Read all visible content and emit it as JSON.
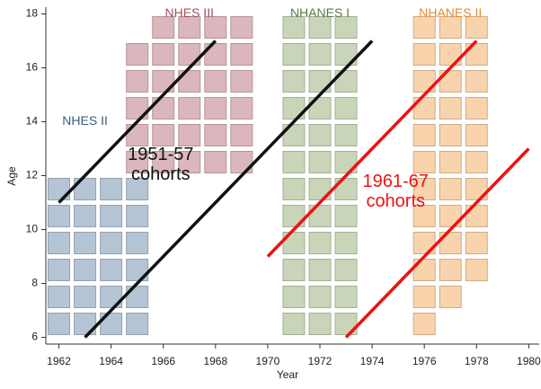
{
  "chart_data": {
    "type": "lexis",
    "x_label": "Year",
    "y_label": "Age",
    "xlim": [
      1961.5,
      1980.4
    ],
    "ylim": [
      5.75,
      18.25
    ],
    "xticks": [
      1962,
      1964,
      1966,
      1968,
      1970,
      1972,
      1974,
      1976,
      1978,
      1980
    ],
    "yticks": [
      6,
      8,
      10,
      12,
      14,
      16,
      18
    ],
    "surveys": [
      {
        "name": "NHES II",
        "color": "#b5c4d4",
        "label_color": "#3f5b7a",
        "label_at": [
          1963,
          14
        ],
        "columns": [
          {
            "year": 1962,
            "ages": [
              6,
              11
            ]
          },
          {
            "year": 1963,
            "ages": [
              6,
              11
            ]
          },
          {
            "year": 1964,
            "ages": [
              6,
              11
            ]
          },
          {
            "year": 1965,
            "ages": [
              6,
              11
            ]
          }
        ]
      },
      {
        "name": "NHES III",
        "color": "#dbb6bc",
        "label_color": "#a0505a",
        "label_at": [
          1967,
          18
        ],
        "columns": [
          {
            "year": 1965,
            "ages": [
              12,
              16
            ]
          },
          {
            "year": 1966,
            "ages": [
              12,
              17
            ]
          },
          {
            "year": 1967,
            "ages": [
              12,
              17
            ]
          },
          {
            "year": 1968,
            "ages": [
              12,
              17
            ]
          },
          {
            "year": 1969,
            "ages": [
              12,
              17
            ]
          }
        ]
      },
      {
        "name": "NHANES I",
        "color": "#c8d5b8",
        "label_color": "#5b7a3a",
        "label_at": [
          1972,
          18
        ],
        "columns": [
          {
            "year": 1971,
            "ages": [
              6,
              17
            ]
          },
          {
            "year": 1972,
            "ages": [
              6,
              17
            ]
          },
          {
            "year": 1973,
            "ages": [
              6,
              17
            ]
          }
        ]
      },
      {
        "name": "NHANES II",
        "color": "#f8d3ab",
        "label_color": "#e8892a",
        "label_at": [
          1977,
          18
        ],
        "columns": [
          {
            "year": 1976,
            "ages": [
              6,
              17
            ]
          },
          {
            "year": 1977,
            "ages": [
              7,
              17
            ]
          },
          {
            "year": 1978,
            "ages": [
              8,
              17
            ]
          }
        ]
      }
    ],
    "lines": [
      {
        "color": "#111111",
        "x": [
          1962,
          1968
        ],
        "y": [
          11,
          17
        ]
      },
      {
        "color": "#111111",
        "x": [
          1963,
          1974
        ],
        "y": [
          6,
          17
        ]
      },
      {
        "color": "#ee1111",
        "x": [
          1970,
          1978
        ],
        "y": [
          9,
          17
        ]
      },
      {
        "color": "#ee1111",
        "x": [
          1973,
          1980
        ],
        "y": [
          6,
          13
        ]
      }
    ],
    "annotations": [
      {
        "text": [
          "1951-57",
          "cohorts"
        ],
        "color": "#111111",
        "at": [
          1965.9,
          12.4
        ]
      },
      {
        "text": [
          "1961-67",
          "cohorts"
        ],
        "color": "#ee1111",
        "at": [
          1974.9,
          11.4
        ]
      }
    ]
  }
}
